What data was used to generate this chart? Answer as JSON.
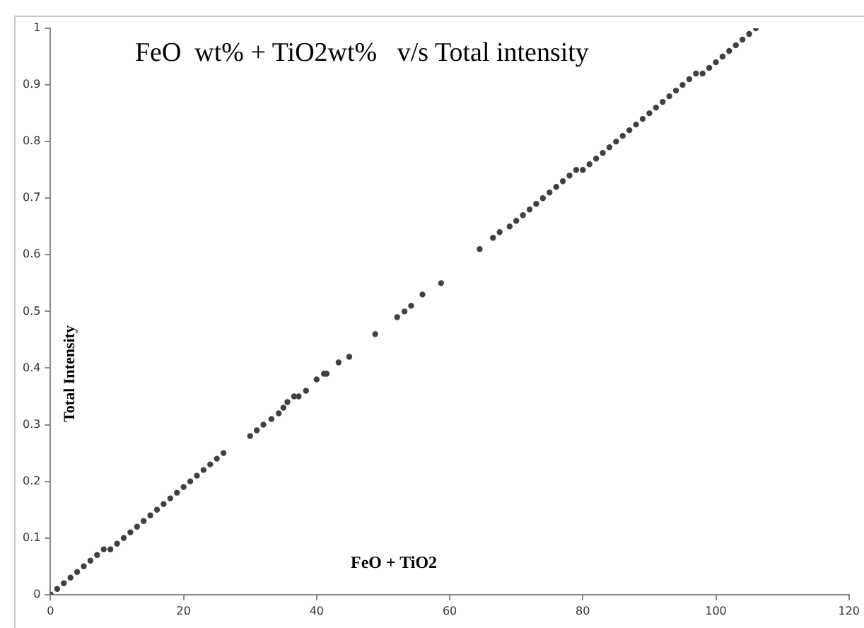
{
  "chart_data": {
    "type": "scatter",
    "title": "FeO  wt% + TiO2wt%   v/s Total intensity",
    "xlabel": "FeO + TiO2",
    "ylabel": "Total Intensity",
    "xlim": [
      0,
      120
    ],
    "xticks": [
      0,
      20,
      40,
      60,
      80,
      100,
      120
    ],
    "ylim": [
      0,
      1
    ],
    "yticks": [
      0,
      0.1,
      0.2,
      0.3,
      0.4,
      0.5,
      0.6,
      0.7,
      0.8,
      0.9,
      1
    ],
    "grid": false,
    "legend": false,
    "marker": "circle",
    "series": [
      {
        "color": "#404040",
        "x": [
          0,
          1,
          2,
          3,
          4,
          5,
          6,
          7,
          8,
          9,
          10,
          11,
          12,
          13,
          14,
          15,
          16,
          17,
          18,
          19,
          20,
          21,
          22,
          23,
          24,
          25,
          26,
          30,
          31,
          32,
          33.2,
          34.3,
          35,
          35.6,
          36.6,
          37.3,
          38.4,
          40,
          41.1,
          41.5,
          43.3,
          44.9,
          48.8,
          52.1,
          53.2,
          54.2,
          55.9,
          58.7,
          64.5,
          66.5,
          67.5,
          69,
          70,
          71,
          72,
          73,
          74,
          75,
          76,
          77,
          78,
          79,
          80,
          81,
          82,
          83,
          84,
          85,
          86,
          87,
          88,
          89,
          90,
          91,
          92,
          93,
          94,
          95,
          96,
          97,
          98,
          99,
          100,
          101,
          102,
          103,
          104,
          105,
          106
        ],
        "values": [
          0,
          0.01,
          0.02,
          0.03,
          0.04,
          0.05,
          0.06,
          0.07,
          0.08,
          0.08,
          0.09,
          0.1,
          0.11,
          0.12,
          0.13,
          0.14,
          0.15,
          0.16,
          0.17,
          0.18,
          0.19,
          0.2,
          0.21,
          0.22,
          0.23,
          0.24,
          0.25,
          0.28,
          0.29,
          0.3,
          0.31,
          0.32,
          0.33,
          0.34,
          0.35,
          0.35,
          0.36,
          0.38,
          0.39,
          0.39,
          0.41,
          0.42,
          0.46,
          0.49,
          0.5,
          0.51,
          0.53,
          0.55,
          0.61,
          0.63,
          0.64,
          0.65,
          0.66,
          0.67,
          0.68,
          0.69,
          0.7,
          0.71,
          0.72,
          0.73,
          0.74,
          0.75,
          0.75,
          0.76,
          0.77,
          0.78,
          0.79,
          0.8,
          0.81,
          0.82,
          0.83,
          0.84,
          0.85,
          0.86,
          0.87,
          0.88,
          0.89,
          0.9,
          0.91,
          0.92,
          0.92,
          0.93,
          0.94,
          0.95,
          0.96,
          0.97,
          0.98,
          0.99,
          1
        ]
      }
    ]
  }
}
